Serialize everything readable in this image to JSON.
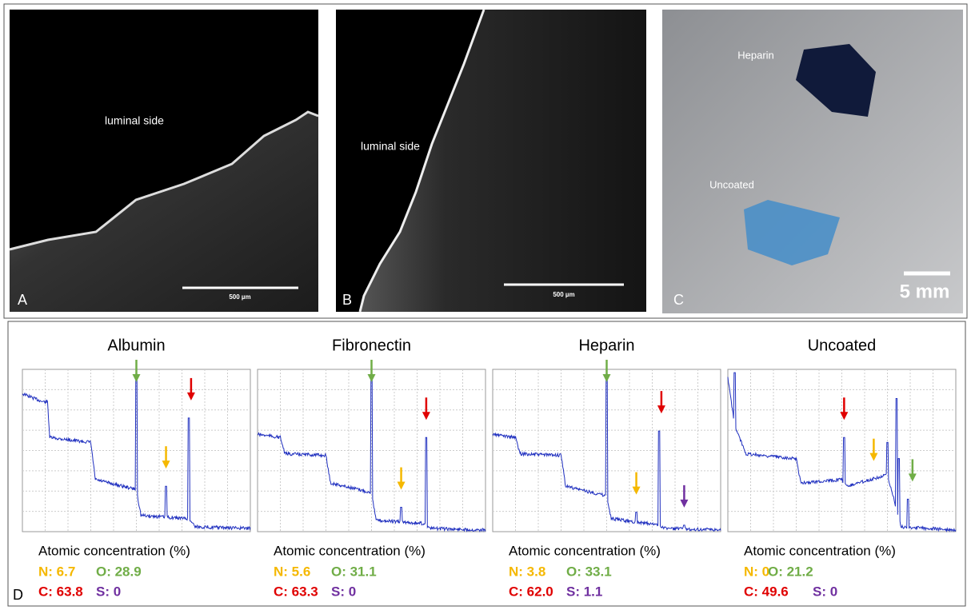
{
  "panels": {
    "A": {
      "label": "A",
      "annotation": "luminal side",
      "scale_bar": "500 µm"
    },
    "B": {
      "label": "B",
      "annotation": "luminal side",
      "scale_bar": "500 µm"
    },
    "C": {
      "label": "C",
      "sample_top": "Heparin",
      "sample_bottom": "Uncoated",
      "scale_bar": "5 mm"
    }
  },
  "panel_d": {
    "label": "D",
    "spectra": [
      {
        "title": "Albumin",
        "heading": "Atomic concentration (%)",
        "N": "N: 6.7",
        "O": "O: 28.9",
        "C": "C: 63.8",
        "S": "S: 0"
      },
      {
        "title": "Fibronectin",
        "heading": "Atomic concentration (%)",
        "N": "N: 5.6",
        "O": "O: 31.1",
        "C": "C: 63.3",
        "S": "S: 0"
      },
      {
        "title": "Heparin",
        "heading": "Atomic concentration (%)",
        "N": "N: 3.8",
        "O": "O: 33.1",
        "C": "C: 62.0",
        "S": "S: 1.1"
      },
      {
        "title": "Uncoated",
        "heading": "Atomic concentration (%)",
        "N": "N: 0",
        "O": "O: 21.2",
        "C": "C: 49.6",
        "S": "S: 0"
      }
    ]
  }
}
